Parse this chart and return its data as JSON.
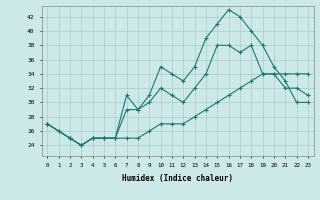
{
  "xlabel": "Humidex (Indice chaleur)",
  "bg_color": "#cce8e8",
  "grid_color": "#aacccc",
  "line_color": "#1a7a6e",
  "xlim": [
    -0.5,
    23.5
  ],
  "ylim": [
    22.5,
    43.5
  ],
  "yticks": [
    24,
    26,
    28,
    30,
    32,
    34,
    36,
    38,
    40,
    42
  ],
  "xticks": [
    0,
    1,
    2,
    3,
    4,
    5,
    6,
    7,
    8,
    9,
    10,
    11,
    12,
    13,
    14,
    15,
    16,
    17,
    18,
    19,
    20,
    21,
    22,
    23
  ],
  "line1_x": [
    0,
    1,
    2,
    3,
    4,
    5,
    6,
    7,
    8,
    9,
    10,
    11,
    12,
    13,
    14,
    15,
    16,
    17,
    18,
    19,
    20,
    21,
    22,
    23
  ],
  "line1_y": [
    27,
    26,
    25,
    24,
    25,
    25,
    25,
    29,
    29,
    31,
    35,
    34,
    33,
    35,
    39,
    41,
    43,
    42,
    40,
    38,
    35,
    33,
    30,
    30
  ],
  "line2_x": [
    0,
    2,
    3,
    4,
    5,
    6,
    7,
    8,
    9,
    10,
    11,
    12,
    13,
    14,
    15,
    16,
    17,
    18,
    19,
    20,
    21,
    22,
    23
  ],
  "line2_y": [
    27,
    25,
    24,
    25,
    25,
    25,
    31,
    29,
    30,
    32,
    31,
    30,
    32,
    34,
    38,
    38,
    37,
    38,
    34,
    34,
    32,
    32,
    31
  ],
  "line3_x": [
    0,
    1,
    2,
    3,
    4,
    5,
    6,
    7,
    8,
    9,
    10,
    11,
    12,
    13,
    14,
    15,
    16,
    17,
    18,
    19,
    20,
    21,
    22,
    23
  ],
  "line3_y": [
    27,
    26,
    25,
    24,
    25,
    25,
    25,
    25,
    25,
    26,
    27,
    27,
    27,
    28,
    29,
    30,
    31,
    32,
    33,
    34,
    34,
    34,
    34,
    34
  ]
}
